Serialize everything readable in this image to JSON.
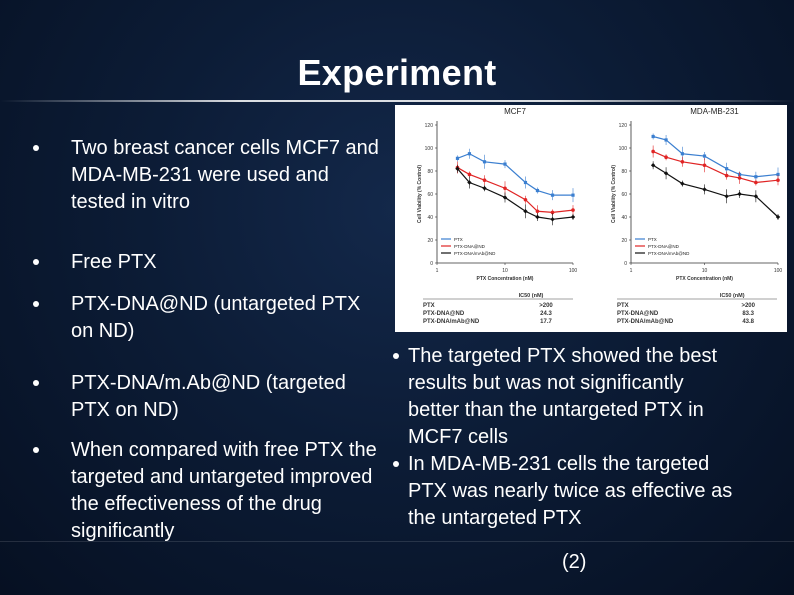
{
  "slide": {
    "title": "Experiment",
    "left_bullets": [
      "Two breast cancer cells MCF7 and MDA-MB-231 were used and tested in vitro",
      "Free PTX",
      "PTX-DNA@ND (untargeted PTX on ND)",
      "PTX-DNA/m.Ab@ND (targeted PTX on ND)",
      "When compared with free PTX the targeted and untargeted improved the effectiveness of the drug significantly"
    ],
    "right_bullets": [
      "The targeted PTX showed the best results but was not significantly better than the untargeted PTX in MCF7 cells",
      "In MDA-MB-231 cells the targeted PTX was nearly twice as effective as the untargeted PTX"
    ],
    "citation": "(2)"
  },
  "colors": {
    "background": "#0c1c36",
    "text": "#ffffff",
    "ptx": "#3b7fd0",
    "ptx_dna_nd": "#e02424",
    "ptx_dna_mab_nd": "#111111"
  },
  "chart_data": [
    {
      "type": "line",
      "title": "MCF7",
      "xlabel": "PTX Concentration (nM)",
      "ylabel": "Cell Viability (% Control)",
      "x_scale": "log",
      "x_ticks": [
        "1",
        "10",
        "100"
      ],
      "y_ticks": [
        "0",
        "20",
        "40",
        "60",
        "80",
        "100",
        "120"
      ],
      "ylim": [
        0,
        120
      ],
      "x": [
        2,
        3,
        5,
        10,
        20,
        30,
        50,
        100
      ],
      "series": [
        {
          "name": "PTX",
          "values": [
            91,
            95,
            88,
            86,
            70,
            63,
            59,
            59
          ]
        },
        {
          "name": "PTX-DNA@ND",
          "values": [
            83,
            77,
            72,
            65,
            55,
            45,
            44,
            46
          ]
        },
        {
          "name": "PTX-DNA/mAb@ND",
          "values": [
            82,
            70,
            65,
            57,
            45,
            40,
            38,
            40
          ]
        }
      ],
      "legend": "bottom-left",
      "ic50_table": {
        "header": "IC50 (nM)",
        "rows": [
          [
            "PTX",
            ">200"
          ],
          [
            "PTX-DNA@ND",
            "24.3"
          ],
          [
            "PTX-DNA/mAb@ND",
            "17.7"
          ]
        ]
      }
    },
    {
      "type": "line",
      "title": "MDA-MB-231",
      "xlabel": "PTX Concentration (nM)",
      "ylabel": "Cell Viability (% Control)",
      "x_scale": "log",
      "x_ticks": [
        "1",
        "10",
        "100"
      ],
      "y_ticks": [
        "0",
        "20",
        "40",
        "60",
        "80",
        "100",
        "120"
      ],
      "ylim": [
        0,
        120
      ],
      "x": [
        2,
        3,
        5,
        10,
        20,
        30,
        50,
        100
      ],
      "series": [
        {
          "name": "PTX",
          "values": [
            110,
            107,
            95,
            93,
            82,
            77,
            75,
            77
          ]
        },
        {
          "name": "PTX-DNA@ND",
          "values": [
            97,
            92,
            88,
            85,
            76,
            74,
            70,
            72
          ]
        },
        {
          "name": "PTX-DNA/mAb@ND",
          "values": [
            85,
            78,
            69,
            64,
            58,
            60,
            58,
            40
          ]
        }
      ],
      "legend": "bottom-left",
      "ic50_table": {
        "header": "IC50 (nM)",
        "rows": [
          [
            "PTX",
            ">200"
          ],
          [
            "PTX-DNA@ND",
            "83.3"
          ],
          [
            "PTX-DNA/mAb@ND",
            "43.8"
          ]
        ]
      }
    }
  ]
}
